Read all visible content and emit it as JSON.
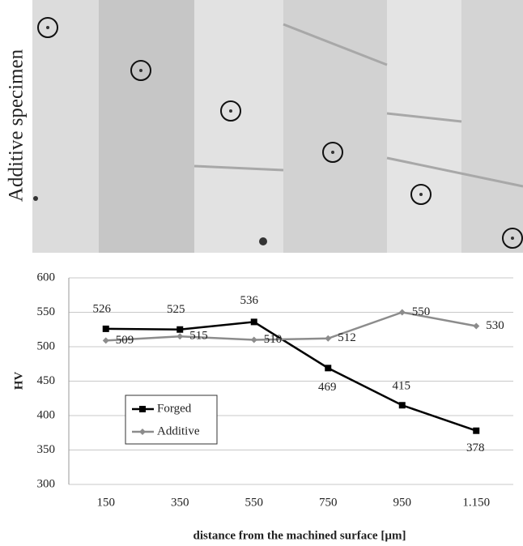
{
  "image_label": "Additive specimen",
  "chart_data": {
    "type": "line",
    "x_label": "distance from the machined surface [µm]",
    "y_label": "HV",
    "categories": [
      "150",
      "350",
      "550",
      "750",
      "950",
      "1.150"
    ],
    "series": [
      {
        "name": "Forged",
        "color": "#000000",
        "values": [
          526,
          525,
          536,
          469,
          415,
          378
        ]
      },
      {
        "name": "Additive",
        "color": "#8c8c8c",
        "values": [
          509,
          515,
          510,
          512,
          550,
          530
        ]
      }
    ],
    "ylim": [
      300,
      600
    ],
    "yticks": [
      300,
      350,
      400,
      450,
      500,
      550,
      600
    ],
    "grid": true
  }
}
